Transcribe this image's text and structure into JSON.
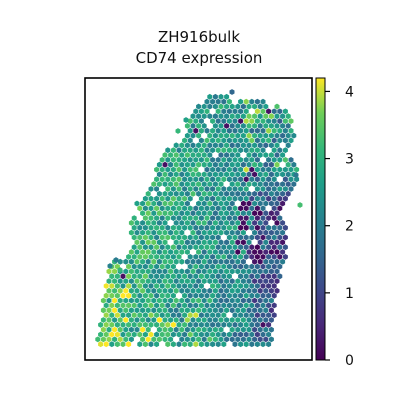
{
  "chart_data": {
    "type": "scatter",
    "title": "ZH916bulk",
    "subtitle": "CD74 expression",
    "xlabel": "",
    "ylabel": "",
    "grid": false,
    "legend": "none",
    "colorbar": {
      "label": "",
      "colormap": "viridis",
      "range": [
        0,
        4.2
      ],
      "ticks": [
        0,
        1,
        2,
        3,
        4
      ],
      "tick_labels": [
        "0",
        "1",
        "2",
        "3",
        "4"
      ]
    },
    "spatial_extent_normalized": {
      "x": [
        0,
        1
      ],
      "y": [
        0,
        1
      ]
    },
    "marker": "hexagon",
    "spot_value_summary": {
      "typical_range": [
        1.5,
        3.8
      ],
      "high_regions": [
        "upper-right edge",
        "upper-left edge",
        "lower-left corner"
      ],
      "low_regions": [
        "right-center cluster",
        "bottom-right edge"
      ],
      "min": 0,
      "max": 4.2
    }
  }
}
